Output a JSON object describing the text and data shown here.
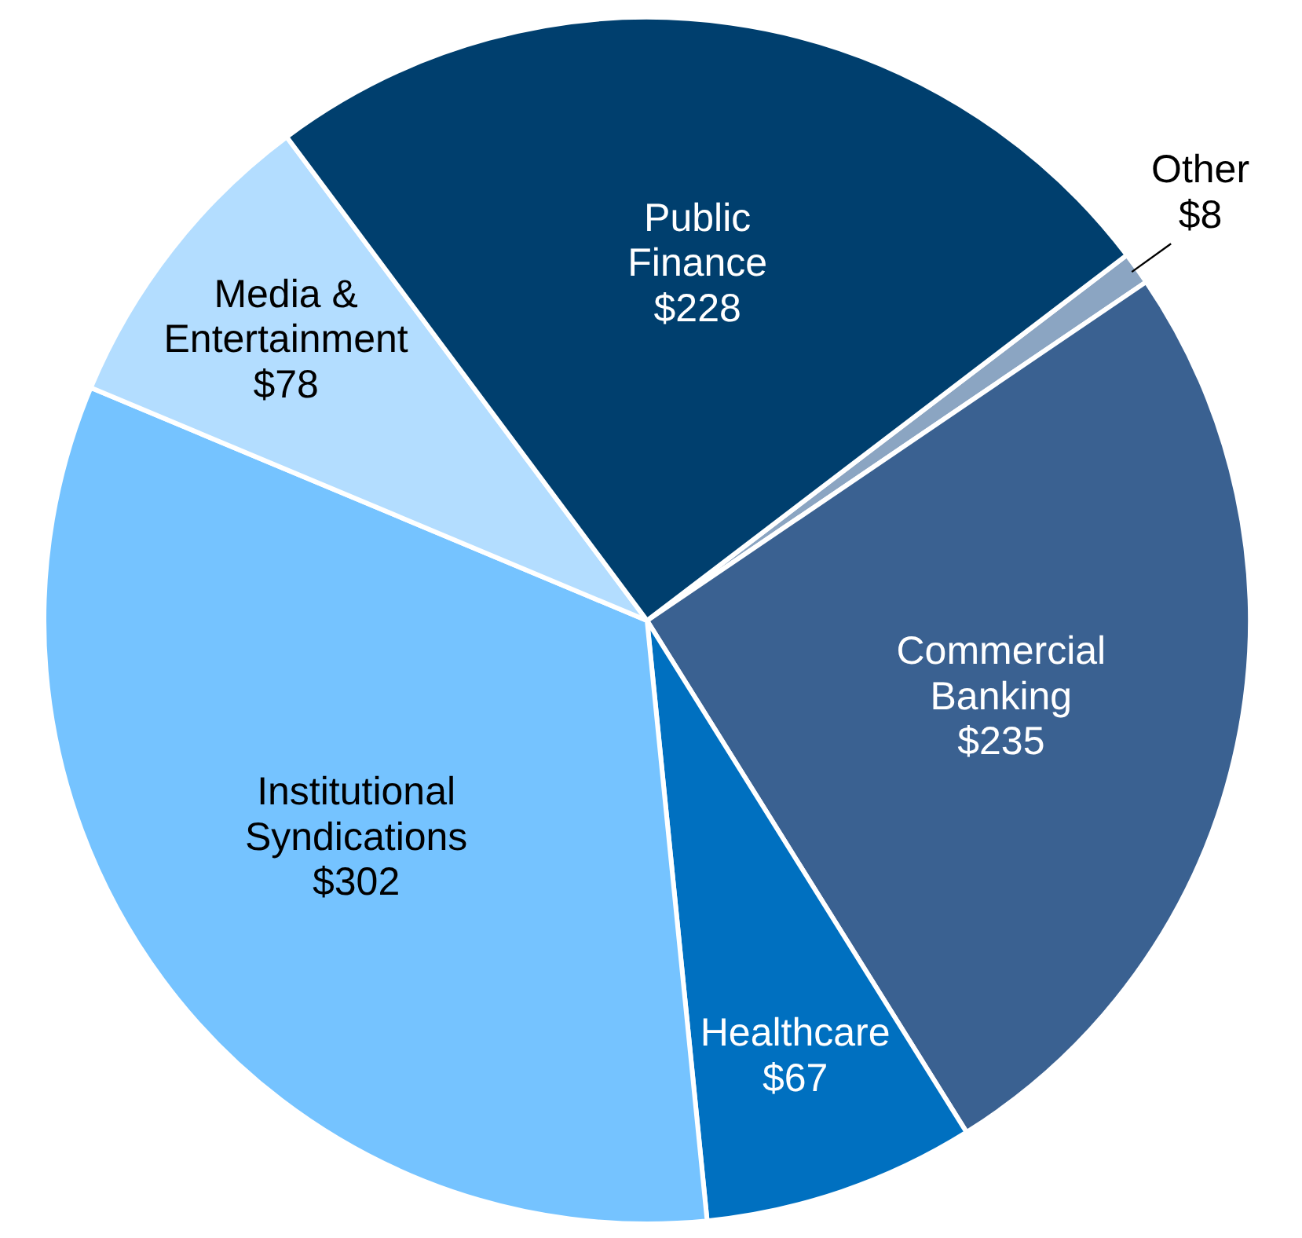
{
  "chart_data": {
    "type": "pie",
    "categories": [
      "Other",
      "Commercial Banking",
      "Healthcare",
      "Institutional Syndications",
      "Media & Entertainment",
      "Public Finance"
    ],
    "values": [
      8,
      235,
      67,
      302,
      78,
      228
    ],
    "colors": [
      "#8ba5c2",
      "#3a6191",
      "#0070c0",
      "#75c3ff",
      "#b3ddff",
      "#003f6e"
    ],
    "value_labels": [
      "$8",
      "$235",
      "$67",
      "$302",
      "$78",
      "$228"
    ]
  }
}
